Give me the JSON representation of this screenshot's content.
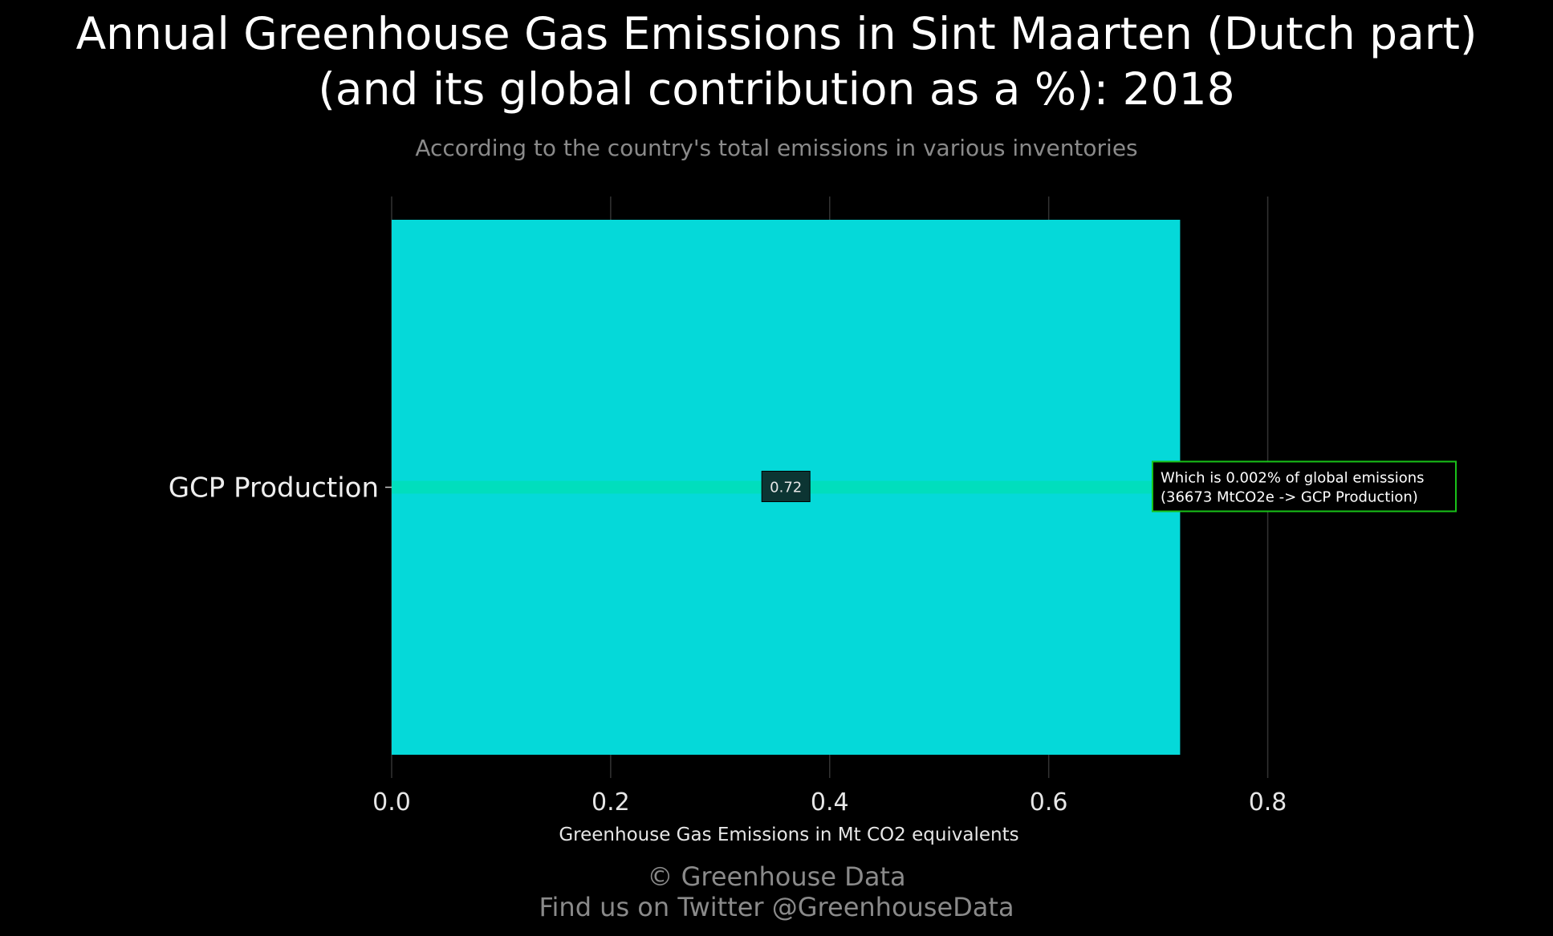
{
  "page": {
    "title_line1": "Annual Greenhouse Gas Emissions in Sint Maarten (Dutch part)",
    "title_line2": "(and its global contribution as a %): 2018",
    "subtitle": "According to the country's total emissions in various inventories",
    "credit_line1": "© Greenhouse Data",
    "credit_line2": "Find us on Twitter @GreenhouseData"
  },
  "chart_data": {
    "type": "bar",
    "orientation": "horizontal",
    "categories": [
      "GCP Production"
    ],
    "values": [
      0.72
    ],
    "data_labels": [
      "0.72"
    ],
    "xlabel": "Greenhouse Gas Emissions in Mt CO2 equivalents",
    "ylabel": "",
    "xlim": [
      0,
      0.9
    ],
    "xticks": [
      0,
      0.2,
      0.4,
      0.6,
      0.8
    ],
    "xtick_labels": [
      "0.0",
      "0.2",
      "0.4",
      "0.6",
      "0.8"
    ],
    "grid": "vertical",
    "annotation": {
      "line1": "Which is 0.002% of global emissions",
      "line2": "(36673 MtCO2e -> GCP Production)"
    },
    "colors": {
      "bar": "#05d9d9",
      "highlight_band": "#00e0b0",
      "grid": "#333333",
      "annotation_border": "#19c219",
      "label_box": "#0c3533"
    }
  }
}
